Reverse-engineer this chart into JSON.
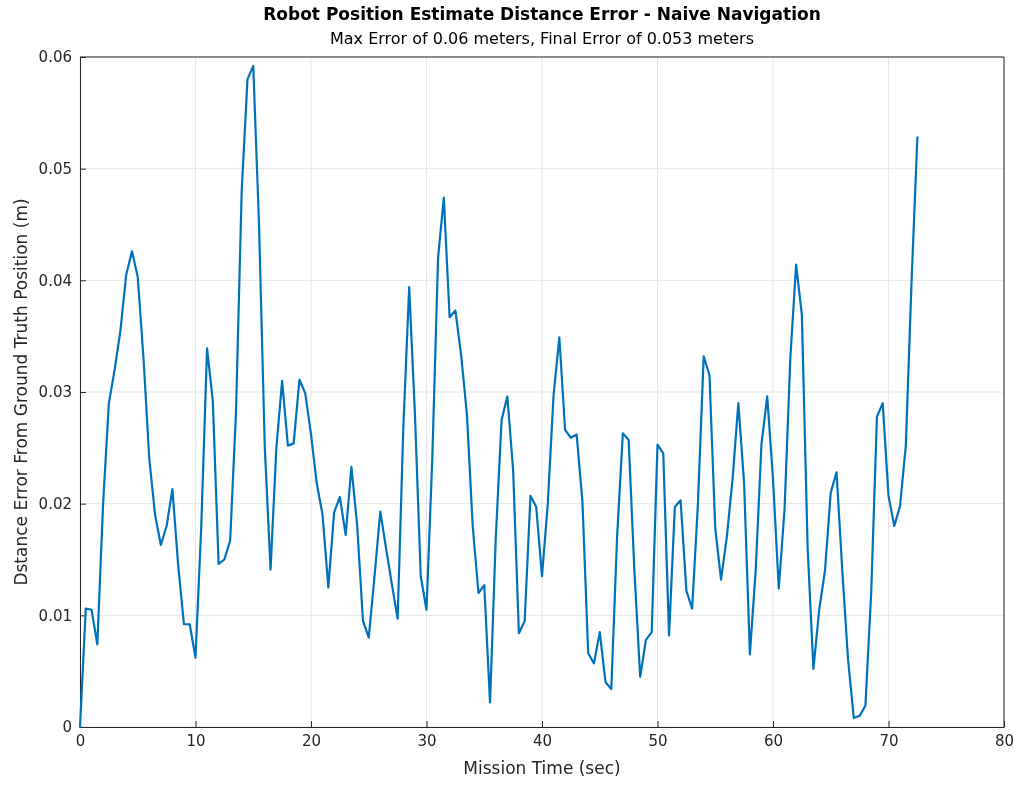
{
  "chart_data": {
    "type": "line",
    "title": "Robot Position Estimate Distance Error - Naive Navigation",
    "subtitle": "Max Error of 0.06 meters, Final Error of 0.053 meters",
    "xlabel": "Mission Time (sec)",
    "ylabel": "Dstance Error From Ground Truth Position (m)",
    "xlim": [
      0,
      80
    ],
    "ylim": [
      0,
      0.06
    ],
    "xticks": [
      0,
      10,
      20,
      30,
      40,
      50,
      60,
      70,
      80
    ],
    "yticks": [
      0,
      0.01,
      0.02,
      0.03,
      0.04,
      0.05,
      0.06
    ],
    "grid": true,
    "line_style": "solid",
    "x": [
      0,
      0.5,
      1,
      1.5,
      2,
      2.5,
      3,
      3.5,
      4,
      4.5,
      5,
      5.5,
      6,
      6.5,
      7,
      7.5,
      8,
      8.5,
      9,
      9.5,
      10,
      10.5,
      11,
      11.5,
      12,
      12.5,
      13,
      13.5,
      14,
      14.5,
      15,
      15.5,
      16,
      16.5,
      17,
      17.5,
      18,
      18.5,
      19,
      19.5,
      20,
      20.5,
      21,
      21.5,
      22,
      22.5,
      23,
      23.5,
      24,
      24.5,
      25,
      25.5,
      26,
      26.5,
      27,
      27.5,
      28,
      28.5,
      29,
      29.5,
      30,
      30.5,
      31,
      31.5,
      32,
      32.5,
      33,
      33.5,
      34,
      34.5,
      35,
      35.5,
      36,
      36.5,
      37,
      37.5,
      38,
      38.5,
      39,
      39.5,
      40,
      40.5,
      41,
      41.5,
      42,
      42.5,
      43,
      43.5,
      44,
      44.5,
      45,
      45.5,
      46,
      46.5,
      47,
      47.5,
      48,
      48.5,
      49,
      49.5,
      50,
      50.5,
      51,
      51.5,
      52,
      52.5,
      53,
      53.5,
      54,
      54.5,
      55,
      55.5,
      56,
      56.5,
      57,
      57.5,
      58,
      58.5,
      59,
      59.5,
      60,
      60.5,
      61,
      61.5,
      62,
      62.5,
      63,
      63.5,
      64,
      64.5,
      65,
      65.5,
      66,
      66.5,
      67,
      67.5,
      68,
      68.5,
      69,
      69.5,
      70,
      70.5,
      71,
      71.5,
      72,
      72.5
    ],
    "series": [
      {
        "color": "#0072bd",
        "values": [
          0,
          0.0106,
          0.0105,
          0.0074,
          0.02,
          0.029,
          0.032,
          0.0355,
          0.0405,
          0.0426,
          0.0403,
          0.033,
          0.024,
          0.019,
          0.0163,
          0.018,
          0.0213,
          0.0145,
          0.0092,
          0.0092,
          0.0062,
          0.018,
          0.0339,
          0.0292,
          0.0146,
          0.015,
          0.0167,
          0.028,
          0.048,
          0.058,
          0.0592,
          0.045,
          0.025,
          0.0141,
          0.025,
          0.031,
          0.0252,
          0.0254,
          0.0311,
          0.0299,
          0.0262,
          0.0218,
          0.019,
          0.0125,
          0.0192,
          0.0206,
          0.0172,
          0.0233,
          0.018,
          0.0095,
          0.008,
          0.0135,
          0.0193,
          0.016,
          0.0128,
          0.0097,
          0.027,
          0.0394,
          0.028,
          0.0135,
          0.0105,
          0.024,
          0.042,
          0.0474,
          0.0367,
          0.0373,
          0.0333,
          0.028,
          0.018,
          0.012,
          0.0127,
          0.0022,
          0.017,
          0.0275,
          0.0296,
          0.023,
          0.0084,
          0.0095,
          0.0207,
          0.0197,
          0.0135,
          0.02,
          0.0297,
          0.0349,
          0.0266,
          0.0259,
          0.0262,
          0.0202,
          0.0066,
          0.0057,
          0.0085,
          0.004,
          0.0034,
          0.017,
          0.0263,
          0.0257,
          0.014,
          0.0045,
          0.0078,
          0.0085,
          0.0253,
          0.0245,
          0.0082,
          0.0197,
          0.0203,
          0.0122,
          0.0106,
          0.02,
          0.0332,
          0.0315,
          0.0178,
          0.0132,
          0.017,
          0.0222,
          0.029,
          0.0218,
          0.0065,
          0.014,
          0.0253,
          0.0296,
          0.0222,
          0.0124,
          0.0195,
          0.033,
          0.0414,
          0.0369,
          0.016,
          0.0052,
          0.0105,
          0.014,
          0.021,
          0.0228,
          0.014,
          0.006,
          0.0008,
          0.001,
          0.0019,
          0.012,
          0.0278,
          0.029,
          0.0207,
          0.018,
          0.0198,
          0.0252,
          0.04,
          0.0528
        ]
      }
    ]
  }
}
